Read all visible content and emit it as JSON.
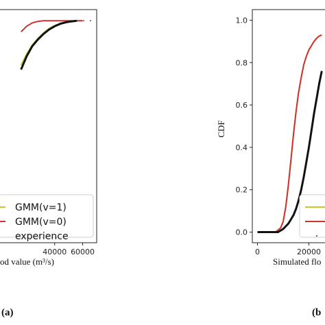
{
  "chart_data": [
    {
      "type": "line",
      "panel_label": "(a)",
      "xlabel": "od value (m³/s)",
      "ylabel": "",
      "xticks": [
        "40000",
        "60000"
      ],
      "xlim": [
        0,
        70000
      ],
      "ylim": [
        0,
        1.05
      ],
      "legend_position": "lower-right",
      "series": [
        {
          "name": "GMM(v=1)",
          "color": "#c8c820",
          "x": [
            16000,
            20000,
            24000,
            28000,
            32000,
            36000,
            40000,
            44000,
            48000,
            52000,
            56000,
            60000
          ],
          "y": [
            0.8,
            0.85,
            0.89,
            0.92,
            0.945,
            0.965,
            0.978,
            0.988,
            0.994,
            0.998,
            1.0,
            1.0
          ]
        },
        {
          "name": "GMM(v=0)",
          "color": "#d03030",
          "x": [
            16000,
            20000,
            24000,
            28000,
            32000,
            36000,
            40000,
            44000,
            48000,
            52000,
            56000,
            60000
          ],
          "y": [
            0.95,
            0.975,
            0.99,
            0.997,
            1.0,
            1.0,
            1.0,
            1.0,
            1.0,
            1.0,
            1.0,
            1.0
          ]
        },
        {
          "name": "experience",
          "color": "#111111",
          "x": [
            16000,
            20000,
            24000,
            28000,
            32000,
            36000,
            40000,
            44000,
            48000,
            52000,
            56000
          ],
          "y": [
            0.78,
            0.84,
            0.885,
            0.915,
            0.94,
            0.96,
            0.975,
            0.986,
            0.993,
            0.997,
            1.0
          ]
        }
      ]
    },
    {
      "type": "line",
      "panel_label": "(b",
      "xlabel": "Simulated flo",
      "ylabel": "CDF",
      "xticks": [
        "0",
        "20000"
      ],
      "yticks": [
        "0.0",
        "0.2",
        "0.4",
        "0.6",
        "0.8",
        "1.0"
      ],
      "xlim": [
        -2000,
        30000
      ],
      "ylim": [
        -0.05,
        1.05
      ],
      "legend_position": "lower-right",
      "series": [
        {
          "name": "",
          "color": "#c8c820",
          "x": [
            0,
            7000,
            9000,
            10000,
            11000,
            12000,
            13000,
            14000,
            15000,
            16000,
            17000,
            18000,
            19000,
            20000,
            21000,
            22000,
            23000,
            24000,
            25000
          ],
          "y": [
            0,
            0,
            0.02,
            0.05,
            0.12,
            0.22,
            0.34,
            0.46,
            0.57,
            0.66,
            0.73,
            0.79,
            0.83,
            0.86,
            0.88,
            0.9,
            0.915,
            0.925,
            0.93
          ]
        },
        {
          "name": "",
          "color": "#d03030",
          "x": [
            0,
            7000,
            9000,
            10000,
            11000,
            12000,
            13000,
            14000,
            15000,
            16000,
            17000,
            18000,
            19000,
            20000,
            21000,
            22000,
            23000,
            24000,
            25000
          ],
          "y": [
            0,
            0,
            0.02,
            0.05,
            0.12,
            0.22,
            0.34,
            0.46,
            0.57,
            0.66,
            0.73,
            0.79,
            0.83,
            0.86,
            0.88,
            0.9,
            0.915,
            0.925,
            0.93
          ]
        },
        {
          "name": "",
          "color": "#111111",
          "x": [
            0,
            8000,
            10000,
            12000,
            13000,
            14000,
            15000,
            16000,
            17000,
            18000,
            19000,
            20000,
            21000,
            22000,
            23000,
            24000,
            25000
          ],
          "y": [
            0,
            0,
            0.015,
            0.04,
            0.06,
            0.08,
            0.11,
            0.15,
            0.2,
            0.26,
            0.33,
            0.4,
            0.48,
            0.56,
            0.63,
            0.7,
            0.76
          ]
        }
      ]
    }
  ]
}
